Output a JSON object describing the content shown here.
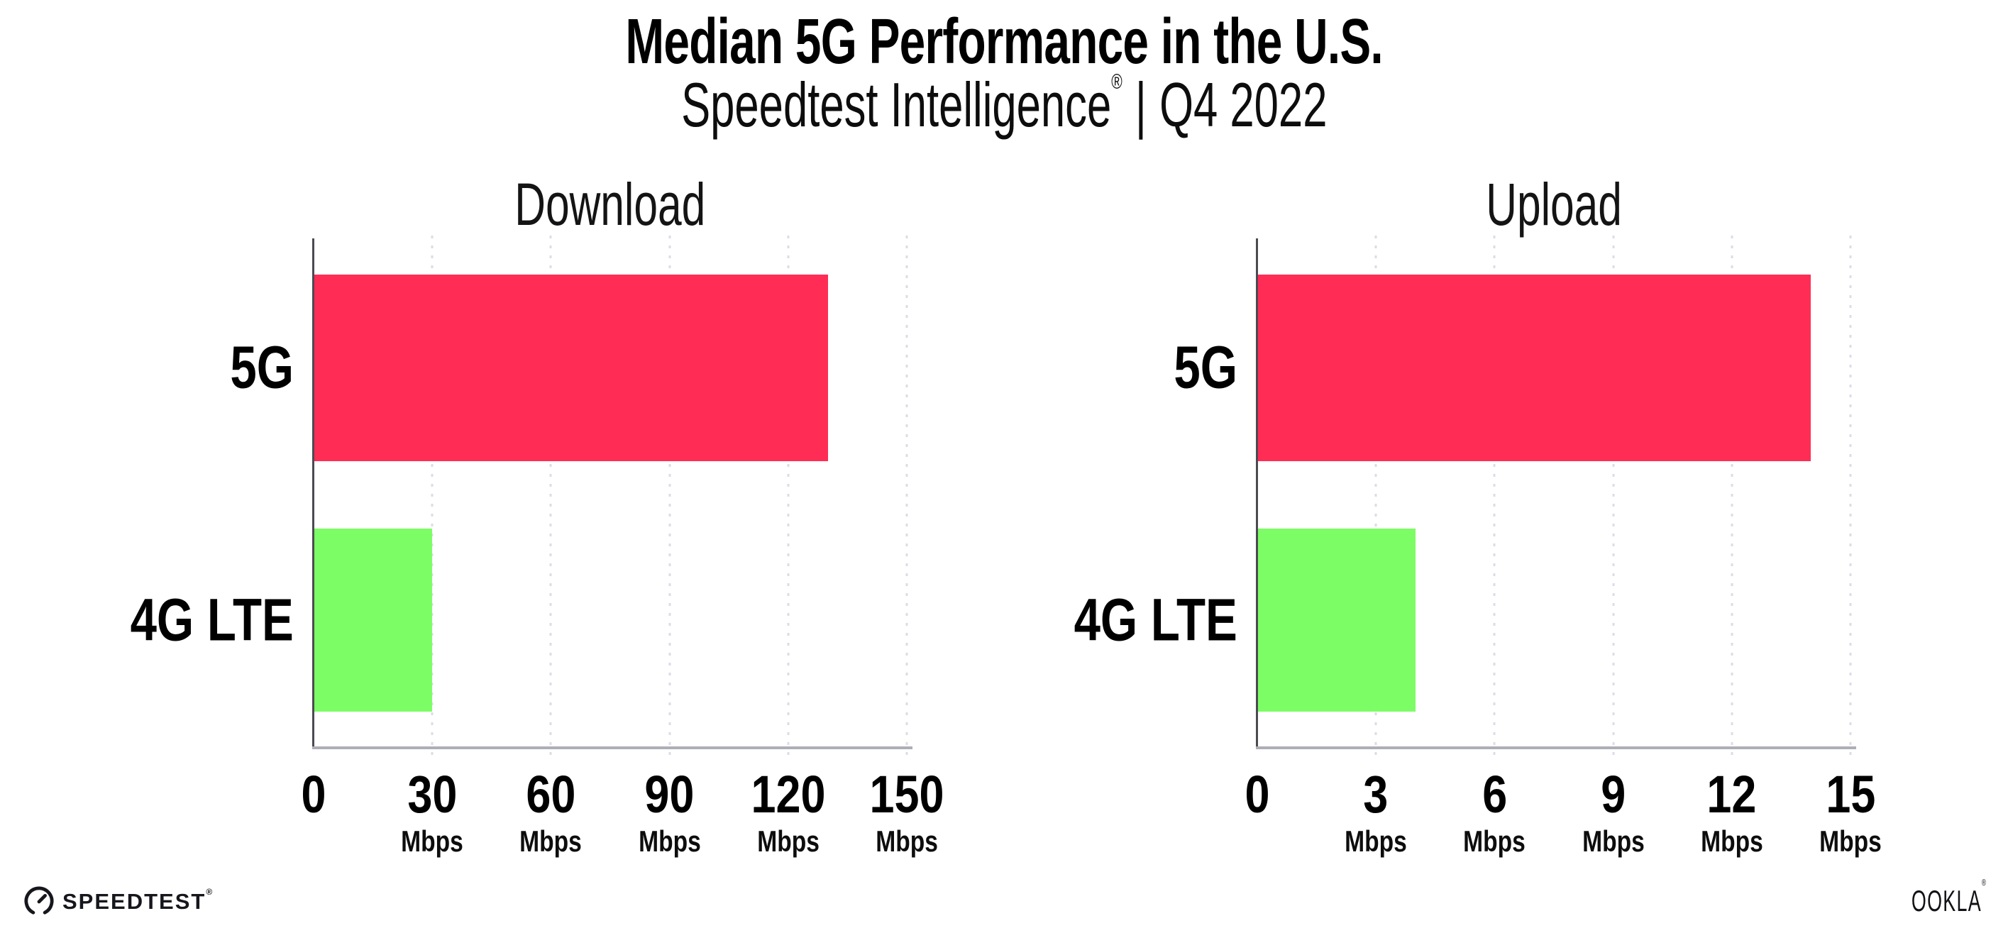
{
  "header": {
    "title": "Median 5G Performance in the U.S.",
    "subtitle": {
      "brand": "Speedtest Intelligence",
      "registered_mark": "®",
      "separator": "|",
      "period": "Q4 2022"
    }
  },
  "chart_data": [
    {
      "type": "bar",
      "orientation": "horizontal",
      "title": "Download",
      "categories": [
        "5G",
        "4G LTE"
      ],
      "values": [
        130,
        30
      ],
      "unit": "Mbps",
      "xlabel": "",
      "ylabel": "",
      "xlim": [
        0,
        150
      ],
      "xticks": [
        0,
        30,
        60,
        90,
        120,
        150
      ],
      "bar_colors": [
        "#ff2d55",
        "#7dfd65"
      ],
      "grid": "dotted vertical gridlines at each tick",
      "legend": "none"
    },
    {
      "type": "bar",
      "orientation": "horizontal",
      "title": "Upload",
      "categories": [
        "5G",
        "4G LTE"
      ],
      "values": [
        14,
        4
      ],
      "unit": "Mbps",
      "xlabel": "",
      "ylabel": "",
      "xlim": [
        0,
        15
      ],
      "xticks": [
        0,
        3,
        6,
        9,
        12,
        15
      ],
      "bar_colors": [
        "#ff2d55",
        "#7dfd65"
      ],
      "grid": "dotted vertical gridlines at each tick",
      "legend": "none"
    }
  ],
  "footer": {
    "speedtest_wordmark": "SPEEDTEST",
    "speedtest_registered_mark": "®",
    "ookla_wordmark": "OOKLA",
    "ookla_registered_mark": "®"
  },
  "colors": {
    "bar_5g": "#ff2d55",
    "bar_4g_lte": "#7dfd65",
    "background": "#ffffff",
    "axis_spine": "#4a4a52",
    "axis_line": "#aeaeb6",
    "gridline_dots": "#dcdce8",
    "text": "#000000"
  }
}
